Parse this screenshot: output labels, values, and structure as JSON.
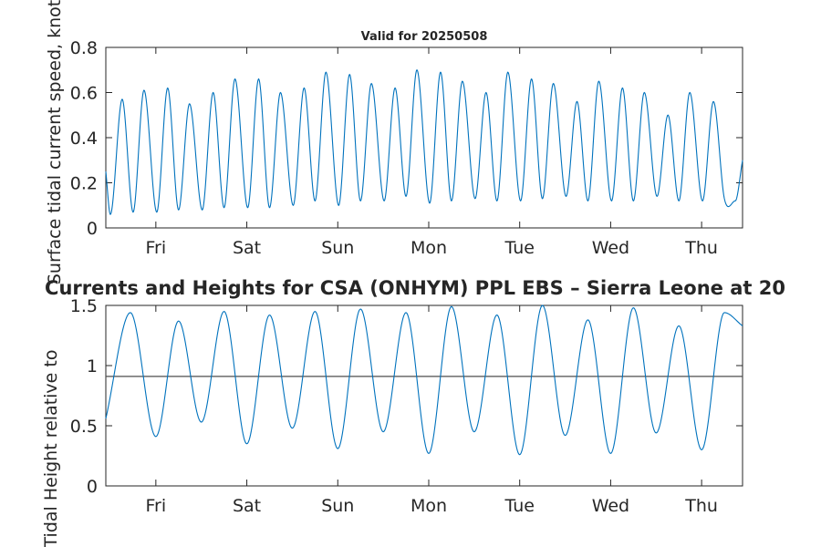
{
  "chart_data": [
    {
      "type": "line",
      "title": "Valid for 20250508",
      "ylabel": "Surface tidal current speed, knots",
      "xlabel": "",
      "ylim": [
        0,
        0.8
      ],
      "yticks": [
        0,
        0.2,
        0.4,
        0.6,
        0.8
      ],
      "ytick_labels": [
        "0",
        "0.2",
        "0.4",
        "0.6",
        "0.8"
      ],
      "xlim": [
        0,
        7
      ],
      "xticks": [
        0.55,
        1.55,
        2.55,
        3.55,
        4.55,
        5.55,
        6.55
      ],
      "xtick_labels": [
        "Fri",
        "Sat",
        "Sun",
        "Mon",
        "Tue",
        "Wed",
        "Thu"
      ],
      "grid": false,
      "series": [
        {
          "color": "#0072BD",
          "x": [
            0.0,
            0.05,
            0.18,
            0.3,
            0.42,
            0.56,
            0.68,
            0.8,
            0.92,
            1.06,
            1.18,
            1.3,
            1.42,
            1.56,
            1.68,
            1.8,
            1.92,
            2.06,
            2.18,
            2.3,
            2.42,
            2.56,
            2.68,
            2.8,
            2.92,
            3.06,
            3.18,
            3.3,
            3.42,
            3.56,
            3.68,
            3.8,
            3.92,
            4.06,
            4.18,
            4.3,
            4.42,
            4.56,
            4.68,
            4.8,
            4.92,
            5.06,
            5.18,
            5.3,
            5.42,
            5.56,
            5.68,
            5.8,
            5.92,
            6.06,
            6.18,
            6.3,
            6.42,
            6.56,
            6.68,
            6.8,
            6.92,
            7.0
          ],
          "y": [
            0.25,
            0.06,
            0.57,
            0.07,
            0.61,
            0.07,
            0.62,
            0.08,
            0.55,
            0.08,
            0.6,
            0.09,
            0.66,
            0.09,
            0.66,
            0.09,
            0.6,
            0.1,
            0.62,
            0.12,
            0.69,
            0.1,
            0.68,
            0.12,
            0.64,
            0.12,
            0.62,
            0.14,
            0.7,
            0.11,
            0.69,
            0.12,
            0.65,
            0.13,
            0.6,
            0.12,
            0.69,
            0.12,
            0.66,
            0.13,
            0.64,
            0.14,
            0.56,
            0.12,
            0.65,
            0.12,
            0.62,
            0.12,
            0.6,
            0.14,
            0.5,
            0.12,
            0.6,
            0.12,
            0.56,
            0.13,
            0.12,
            0.3
          ]
        }
      ]
    },
    {
      "type": "line",
      "title": "Currents and Heights for CSA (ONHYM) PPL EBS  – Sierra Leone at 20",
      "ylabel": "Tidal Height relative to",
      "xlabel": "",
      "ylim": [
        0,
        1.5
      ],
      "yticks": [
        0,
        0.5,
        1,
        1.5
      ],
      "ytick_labels": [
        "0",
        "0.5",
        "1",
        "1.5"
      ],
      "xlim": [
        0,
        7
      ],
      "xticks": [
        0.55,
        1.55,
        2.55,
        3.55,
        4.55,
        5.55,
        6.55
      ],
      "xtick_labels": [
        "Fri",
        "Sat",
        "Sun",
        "Mon",
        "Tue",
        "Wed",
        "Thu"
      ],
      "grid": false,
      "reference_line": {
        "y": 0.91,
        "color": "#4d4d4d"
      },
      "series": [
        {
          "color": "#0072BD",
          "x": [
            0.0,
            0.27,
            0.55,
            0.8,
            1.05,
            1.3,
            1.55,
            1.8,
            2.05,
            2.3,
            2.55,
            2.8,
            3.05,
            3.3,
            3.55,
            3.8,
            4.05,
            4.3,
            4.55,
            4.8,
            5.05,
            5.3,
            5.55,
            5.8,
            6.05,
            6.3,
            6.55,
            6.8,
            7.0
          ],
          "y": [
            0.56,
            1.44,
            0.41,
            1.37,
            0.53,
            1.45,
            0.35,
            1.42,
            0.48,
            1.45,
            0.31,
            1.47,
            0.45,
            1.44,
            0.27,
            1.49,
            0.45,
            1.42,
            0.26,
            1.5,
            0.42,
            1.38,
            0.27,
            1.48,
            0.44,
            1.33,
            0.3,
            1.44,
            1.33
          ]
        }
      ]
    }
  ]
}
